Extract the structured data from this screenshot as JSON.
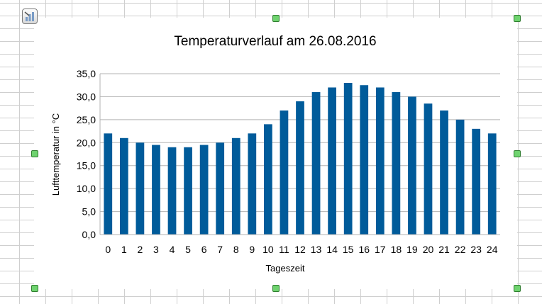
{
  "chart_data": {
    "type": "bar",
    "title": "Temperaturverlauf am 26.08.2016",
    "xlabel": "Tageszeit",
    "ylabel": "Lufttemperatur in °C",
    "categories": [
      "0",
      "1",
      "2",
      "3",
      "4",
      "5",
      "6",
      "7",
      "8",
      "9",
      "10",
      "11",
      "12",
      "13",
      "14",
      "15",
      "16",
      "17",
      "18",
      "19",
      "20",
      "21",
      "22",
      "23",
      "24"
    ],
    "values": [
      22,
      21,
      20,
      19.5,
      19,
      19,
      19.5,
      20,
      21,
      22,
      24,
      27,
      29,
      31,
      32,
      33,
      32.5,
      32,
      31,
      30,
      28.5,
      27,
      25,
      23,
      22
    ],
    "ylim": [
      0,
      35
    ],
    "yticks": [
      "0,0",
      "5,0",
      "10,0",
      "15,0",
      "20,0",
      "25,0",
      "30,0",
      "35,0"
    ],
    "ytick_step": 5,
    "bar_color": "#005b9a",
    "grid": true,
    "legend": false
  },
  "ui": {
    "handle_color": "#6fd36f"
  }
}
